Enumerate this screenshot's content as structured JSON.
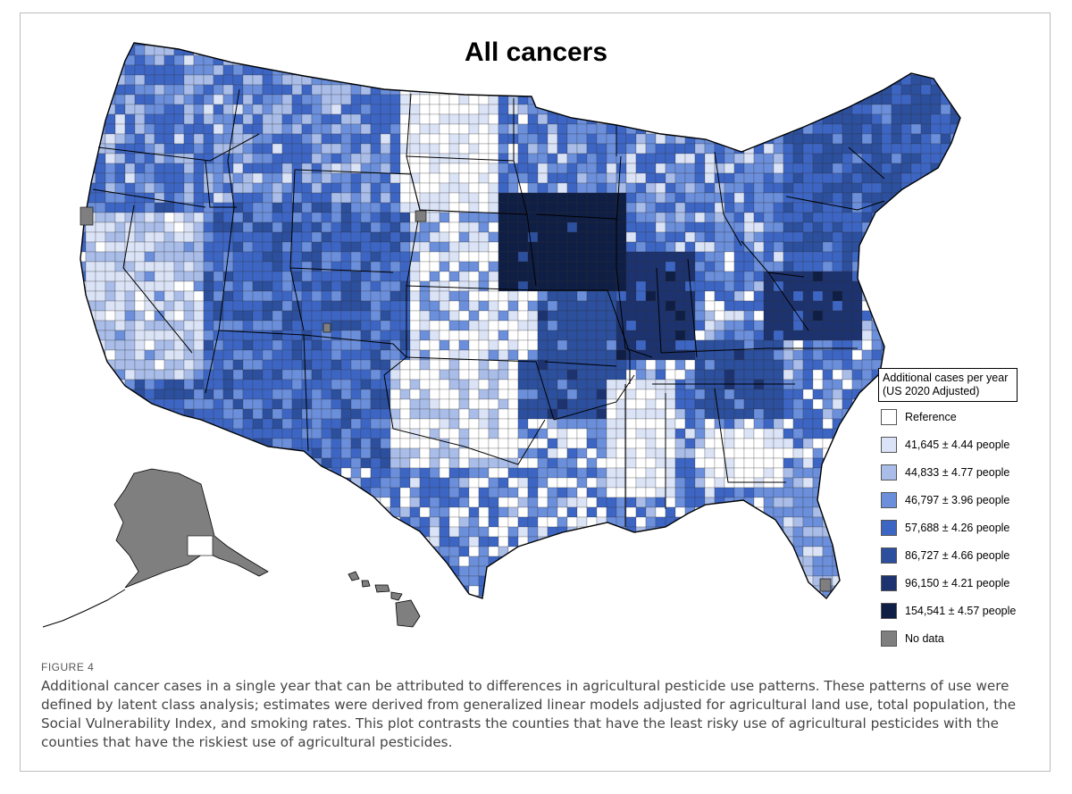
{
  "map": {
    "title": "All cancers",
    "legend": {
      "title_line1": "Additional cases per year",
      "title_line2": "(US 2020 Adjusted)",
      "items": [
        {
          "label": "Reference",
          "color": "#ffffff"
        },
        {
          "label": "41,645 ± 4.44 people",
          "color": "#dbe3f6"
        },
        {
          "label": "44,833 ± 4.77 people",
          "color": "#a9bde8"
        },
        {
          "label": "46,797 ± 3.96 people",
          "color": "#6b8fdb"
        },
        {
          "label": "57,688 ± 4.26 people",
          "color": "#3d66c4"
        },
        {
          "label": "86,727 ± 4.66 people",
          "color": "#2c4f9e"
        },
        {
          "label": "96,150 ± 4.21 people",
          "color": "#1d3370"
        },
        {
          "label": "154,541 ± 4.57 people",
          "color": "#0f1e44"
        },
        {
          "label": "No data",
          "color": "#7f7f7f"
        }
      ]
    }
  },
  "figure": {
    "label": "FIGURE 4",
    "caption": "Additional cancer cases in a single year that can be attributed to differences in agricultural pesticide use patterns. These patterns of use were defined by latent class analysis; estimates were derived from generalized linear models adjusted for agricultural land use, total population, the Social Vulnerability Index, and smoking rates. This plot contrasts the counties that have the least risky use of agricultural pesticides with the counties that have the riskiest use of agricultural pesticides."
  }
}
